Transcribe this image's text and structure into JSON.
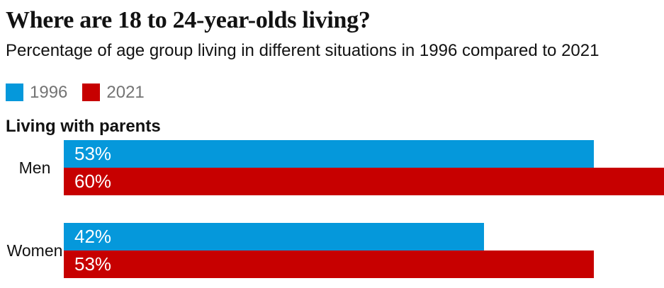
{
  "header": {
    "title": "Where are 18 to 24-year-olds living?",
    "subtitle": "Percentage of age group living in different situations in 1996 compared to 2021"
  },
  "legend": [
    {
      "label": "1996",
      "color": "#0598db"
    },
    {
      "label": "2021",
      "color": "#c70000"
    }
  ],
  "section": {
    "label": "Living with parents"
  },
  "chart_data": {
    "type": "bar",
    "orientation": "horizontal",
    "title": "Where are 18 to 24-year-olds living?",
    "subtitle": "Percentage of age group living in different situations in 1996 compared to 2021",
    "group_label": "Living with parents",
    "categories": [
      "Men",
      "Women"
    ],
    "series": [
      {
        "name": "1996",
        "color": "#0598db",
        "values": [
          53,
          42
        ]
      },
      {
        "name": "2021",
        "color": "#c70000",
        "values": [
          60,
          53
        ]
      }
    ],
    "value_suffix": "%",
    "xlim": [
      0,
      60
    ],
    "grid": false,
    "legend_position": "top-left",
    "value_labels": "inside-left"
  }
}
